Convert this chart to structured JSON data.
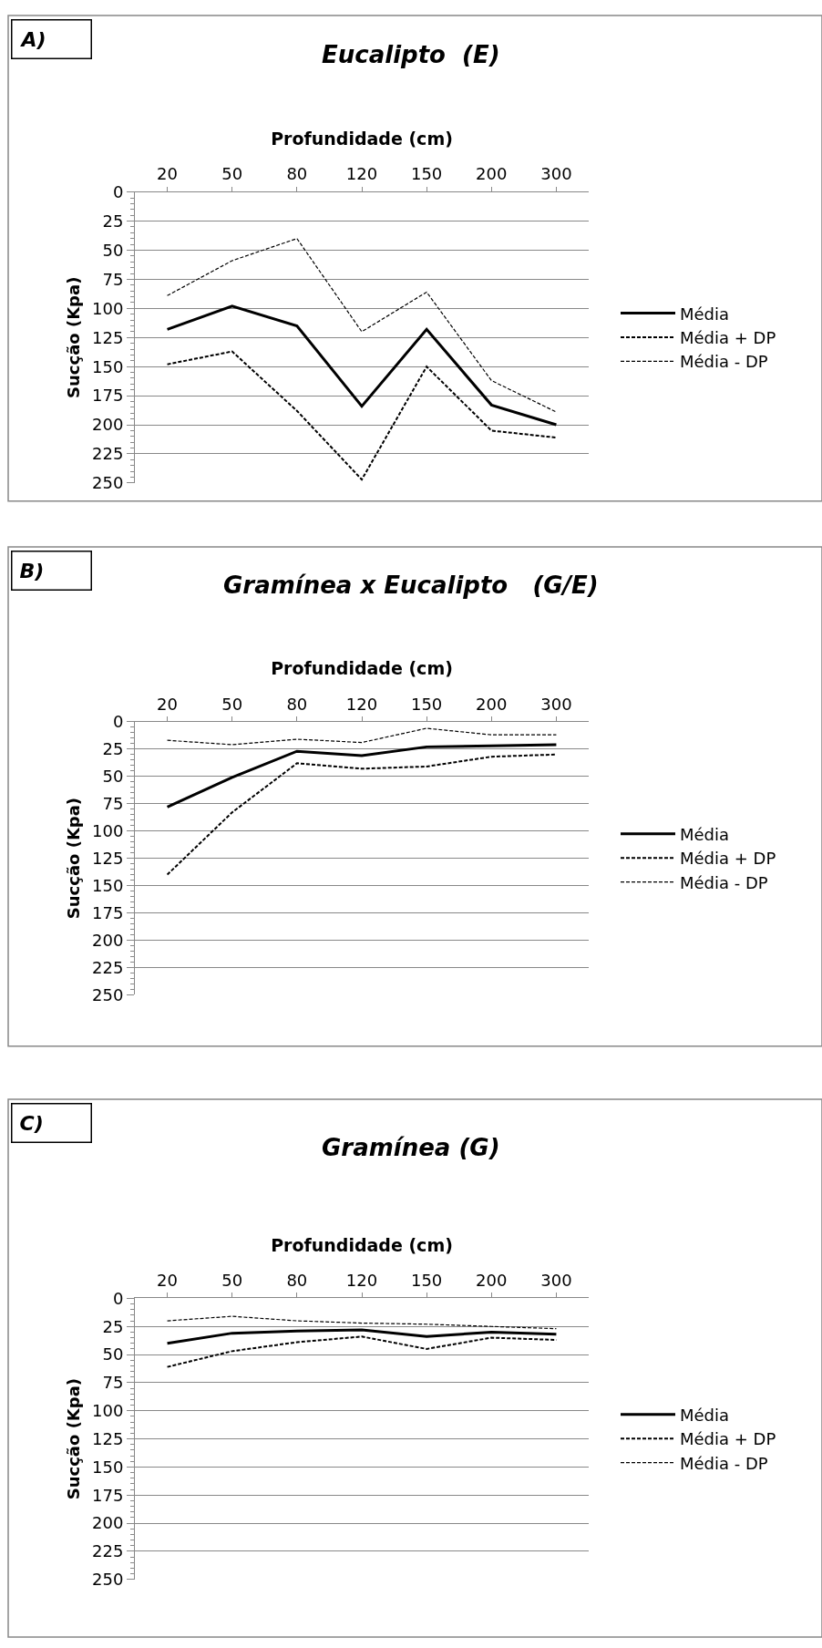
{
  "chart_data": [
    {
      "type": "line",
      "title": "Eucalipto  (E)",
      "annotations": [
        "A)"
      ],
      "xlabel": "Profundidade (cm)",
      "ylabel": "Sucção (Kpa)",
      "categories": [
        "20",
        "50",
        "80",
        "120",
        "150",
        "200",
        "300"
      ],
      "ylim": [
        250,
        0
      ],
      "yticks": [
        0,
        25,
        50,
        75,
        100,
        125,
        150,
        175,
        200,
        225,
        250
      ],
      "grid": "y",
      "legend": "right",
      "marker": "none",
      "series": [
        {
          "name": "Média",
          "color": "#000000",
          "line_style": "solid",
          "values": [
            118,
            98,
            115,
            184,
            118,
            183,
            200
          ]
        },
        {
          "name": "Média + DP",
          "color": "#000000",
          "line_style": "dashed",
          "values": [
            148,
            137,
            188,
            247,
            150,
            205,
            211
          ]
        },
        {
          "name": "Média - DP",
          "color": "#000000",
          "line_style": "dashed",
          "values": [
            89,
            59,
            40,
            120,
            86,
            162,
            189
          ]
        }
      ]
    },
    {
      "type": "line",
      "title": "Gramínea x Eucalipto   (G/E)",
      "annotations": [
        "B)"
      ],
      "xlabel": "Profundidade (cm)",
      "ylabel": "Sucção (Kpa)",
      "categories": [
        "20",
        "50",
        "80",
        "120",
        "150",
        "200",
        "300"
      ],
      "ylim": [
        250,
        0
      ],
      "yticks": [
        0,
        25,
        50,
        75,
        100,
        125,
        150,
        175,
        200,
        225,
        250
      ],
      "grid": "y",
      "legend": "right",
      "marker": "none",
      "series": [
        {
          "name": "Média",
          "color": "#000000",
          "line_style": "solid",
          "values": [
            78,
            51,
            27,
            31,
            23,
            22,
            21
          ]
        },
        {
          "name": "Média + DP",
          "color": "#000000",
          "line_style": "dashed",
          "values": [
            140,
            83,
            38,
            43,
            41,
            32,
            30
          ]
        },
        {
          "name": "Média - DP",
          "color": "#000000",
          "line_style": "dashed",
          "values": [
            17,
            21,
            16,
            19,
            6,
            12,
            12
          ]
        }
      ]
    },
    {
      "type": "line",
      "title": "Gramínea (G)",
      "annotations": [
        "C)"
      ],
      "xlabel": "Profundidade (cm)",
      "ylabel": "Sucção (Kpa)",
      "categories": [
        "20",
        "50",
        "80",
        "120",
        "150",
        "200",
        "300"
      ],
      "ylim": [
        250,
        0
      ],
      "yticks": [
        0,
        25,
        50,
        75,
        100,
        125,
        150,
        175,
        200,
        225,
        250
      ],
      "grid": "y",
      "legend": "right",
      "marker": "none",
      "series": [
        {
          "name": "Média",
          "color": "#000000",
          "line_style": "solid",
          "values": [
            40,
            31,
            29,
            28,
            34,
            30,
            32
          ]
        },
        {
          "name": "Média + DP",
          "color": "#000000",
          "line_style": "dashed",
          "values": [
            61,
            47,
            39,
            34,
            45,
            35,
            37
          ]
        },
        {
          "name": "Média - DP",
          "color": "#000000",
          "line_style": "dashed",
          "values": [
            20,
            16,
            20,
            22,
            23,
            25,
            27
          ]
        }
      ]
    }
  ]
}
